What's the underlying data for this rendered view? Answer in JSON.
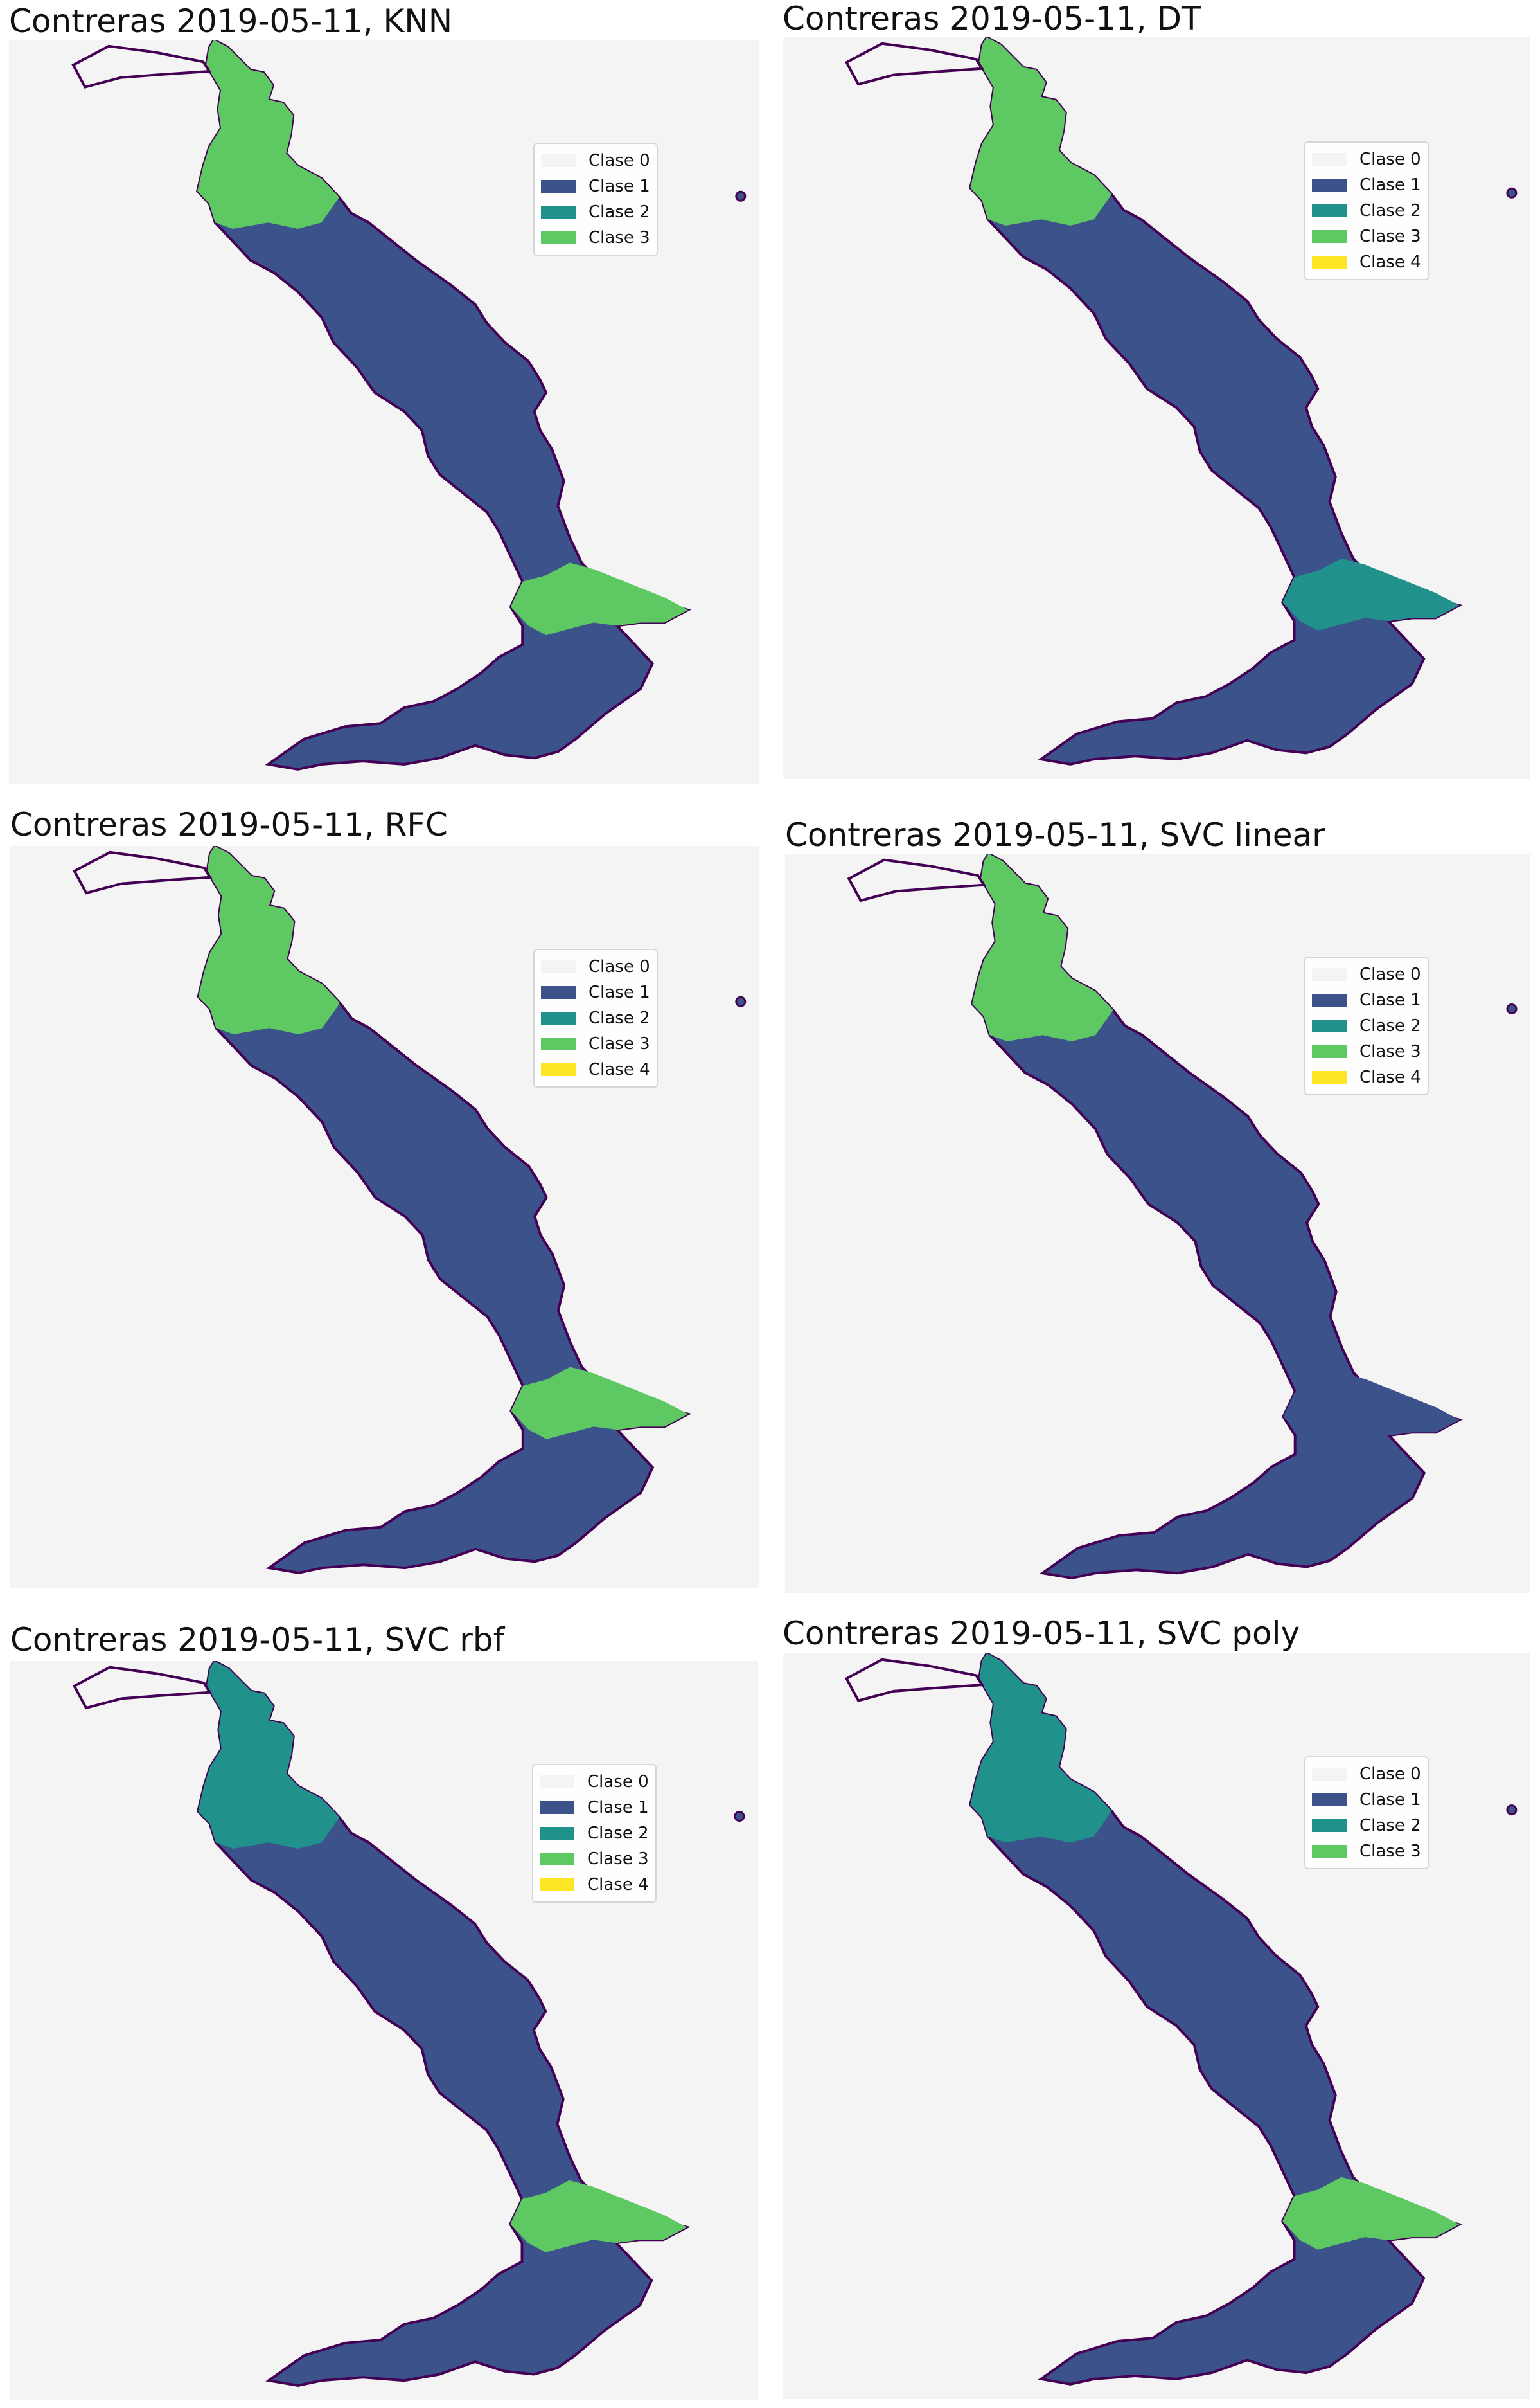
{
  "panels": [
    {
      "title": "Contreras 2019-05-11, KNN",
      "legend": [
        "Clase 0",
        "Clase 1",
        "Clase 2",
        "Clase 3"
      ],
      "dominant": {
        "upper": "clase3",
        "middle": "clase1",
        "lower_arm": "clase3"
      }
    },
    {
      "title": "Contreras 2019-05-11, DT",
      "legend": [
        "Clase 0",
        "Clase 1",
        "Clase 2",
        "Clase 3",
        "Clase 4"
      ],
      "dominant": {
        "upper": "clase3",
        "middle": "clase1",
        "lower_arm": "clase2"
      }
    },
    {
      "title": "Contreras 2019-05-11, RFC",
      "legend": [
        "Clase 0",
        "Clase 1",
        "Clase 2",
        "Clase 3",
        "Clase 4"
      ],
      "dominant": {
        "upper": "clase3",
        "middle": "clase1",
        "lower_arm": "clase3"
      }
    },
    {
      "title": "Contreras 2019-05-11, SVC linear",
      "legend": [
        "Clase 0",
        "Clase 1",
        "Clase 2",
        "Clase 3",
        "Clase 4"
      ],
      "dominant": {
        "upper": "clase3",
        "middle": "clase1",
        "lower_arm": "clase1"
      }
    },
    {
      "title": "Contreras 2019-05-11, SVC rbf",
      "legend": [
        "Clase 0",
        "Clase 1",
        "Clase 2",
        "Clase 3",
        "Clase 4"
      ],
      "dominant": {
        "upper": "clase2",
        "middle": "clase1",
        "lower_arm": "clase3"
      }
    },
    {
      "title": "Contreras 2019-05-11, SVC poly",
      "legend": [
        "Clase 0",
        "Clase 1",
        "Clase 2",
        "Clase 3"
      ],
      "dominant": {
        "upper": "clase2",
        "middle": "clase1",
        "lower_arm": "clase3"
      }
    }
  ],
  "colors": {
    "clase0": "#f4f4f4",
    "clase1": "#3b528b",
    "clase2": "#21918c",
    "clase3": "#5ec962",
    "clase4": "#fde725",
    "outline": "#440154"
  }
}
